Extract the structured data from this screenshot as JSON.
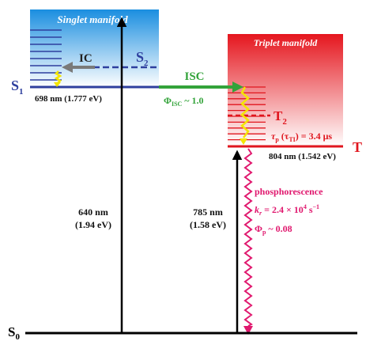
{
  "colors": {
    "singlet": "#2e3f9e",
    "triplet": "#e0161e",
    "isc": "#33a33a",
    "ic_arrow": "#7a7a7a",
    "phosphorescence": "#e0186e",
    "crossover": "#f4e500",
    "singlet_gradient_top": "#1a8ee0",
    "singlet_gradient_bottom": "#ffffff",
    "triplet_gradient_top": "#e5161e",
    "triplet_gradient_bottom": "#ffffff",
    "black": "#000000"
  },
  "singlet_manifold": {
    "title": "Singlet manifold",
    "s1_label": "S",
    "s1_sub": "1",
    "s2_label": "S",
    "s2_sub": "2",
    "s1_energy": "698 nm (1.777 eV)",
    "ic_label": "IC"
  },
  "triplet_manifold": {
    "title": "Triplet manifold",
    "t1_label": "T",
    "t2_label": "T",
    "t2_sub": "2",
    "t1_energy": "804 nm (1.542 eV)",
    "lifetime_tau": "τ",
    "lifetime_tau_sub": "p",
    "lifetime_paren": "(τ",
    "lifetime_paren_sub": "TI",
    "lifetime_value": ") = 3.4 μs"
  },
  "isc": {
    "label": "ISC",
    "phi_symbol": "Φ",
    "phi_sub": "ISC",
    "phi_value": " ~ 1.0"
  },
  "absorption_singlet": {
    "wavelength": "640 nm",
    "energy": "(1.94 eV)"
  },
  "absorption_triplet": {
    "wavelength": "785 nm",
    "energy": "(1.58 eV)"
  },
  "phosphorescence": {
    "label": "phosphorescence",
    "kr_symbol": "k",
    "kr_sub": "r",
    "kr_value": " = 2.4 × 10",
    "kr_exp": "4",
    "kr_unit": " s",
    "kr_unit_exp": "−1",
    "phi_symbol": "Φ",
    "phi_sub": "p",
    "phi_value": " ~ 0.08"
  },
  "ground_state": {
    "label": "S",
    "sub": "0"
  }
}
